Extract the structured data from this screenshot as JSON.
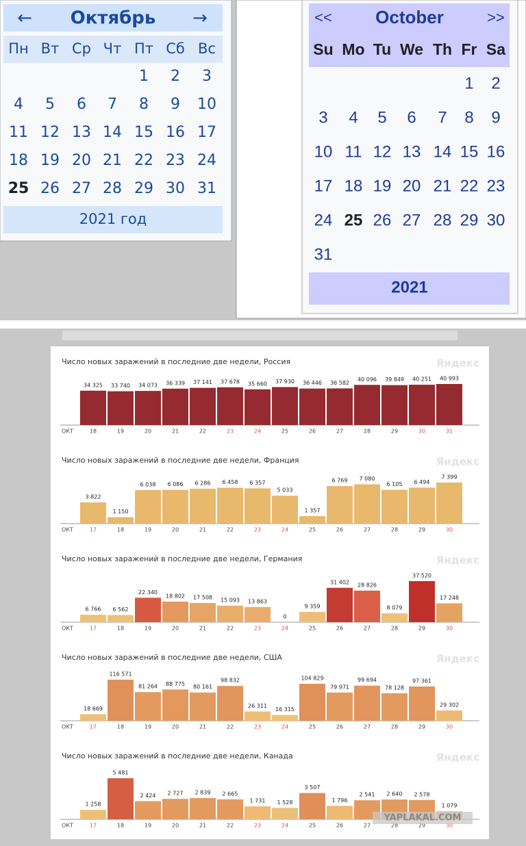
{
  "calendar_ru": {
    "prev": "←",
    "month": "Октябрь",
    "next": "→",
    "weekdays": [
      "Пн",
      "Вт",
      "Ср",
      "Чт",
      "Пт",
      "Сб",
      "Вс"
    ],
    "weeks": [
      [
        null,
        null,
        null,
        null,
        "1",
        "2",
        "3"
      ],
      [
        "4",
        "5",
        "6",
        "7",
        "8",
        "9",
        "10"
      ],
      [
        "11",
        "12",
        "13",
        "14",
        "15",
        "16",
        "17"
      ],
      [
        "18",
        "19",
        "20",
        "21",
        "22",
        "23",
        "24"
      ],
      [
        "25",
        "26",
        "27",
        "28",
        "29",
        "30",
        "31"
      ]
    ],
    "today": "25",
    "footer": "2021 год"
  },
  "calendar_en": {
    "prev": "<<",
    "month": "October",
    "next": ">>",
    "weekdays": [
      "Su",
      "Mo",
      "Tu",
      "We",
      "Th",
      "Fr",
      "Sa"
    ],
    "weeks": [
      [
        null,
        null,
        null,
        null,
        null,
        "1",
        "2"
      ],
      [
        "3",
        "4",
        "5",
        "6",
        "7",
        "8",
        "9"
      ],
      [
        "10",
        "11",
        "12",
        "13",
        "14",
        "15",
        "16"
      ],
      [
        "17",
        "18",
        "19",
        "20",
        "21",
        "22",
        "23"
      ],
      [
        "24",
        "25",
        "26",
        "27",
        "28",
        "29",
        "30"
      ],
      [
        "31",
        null,
        null,
        null,
        null,
        null,
        null
      ]
    ],
    "today": "25",
    "footer": "2021"
  },
  "watermark": "YAPLAKAL.COM",
  "chart_data": [
    {
      "type": "bar",
      "title": "Число новых заражений в последние две недели, Россия",
      "brand": "Яндекс",
      "x_label": "ОКТ",
      "categories": [
        "18",
        "19",
        "20",
        "21",
        "22",
        "23",
        "24",
        "25",
        "26",
        "27",
        "28",
        "29",
        "30",
        "31"
      ],
      "values": [
        34325,
        33740,
        34073,
        36339,
        37141,
        37678,
        35660,
        37930,
        36446,
        36582,
        40096,
        39849,
        40251,
        40993
      ],
      "value_labels": [
        "34 325",
        "33 740",
        "34 073",
        "36 339",
        "37 141",
        "37 678",
        "35 660",
        "37 930",
        "36 446",
        "36 582",
        "40 096",
        "39 849",
        "40 251",
        "40 993"
      ],
      "colors": [
        "#952a30",
        "#952a30",
        "#952a30",
        "#952a30",
        "#952a30",
        "#952a30",
        "#952a30",
        "#952a30",
        "#952a30",
        "#952a30",
        "#952a30",
        "#952a30",
        "#952a30",
        "#952a30"
      ],
      "category_colors": [
        "#444",
        "#444",
        "#444",
        "#444",
        "#444",
        "#d9534f",
        "#d9534f",
        "#444",
        "#444",
        "#444",
        "#444",
        "#444",
        "#d9534f",
        "#d9534f"
      ]
    },
    {
      "type": "bar",
      "title": "Число новых заражений в последние две недели, Франция",
      "brand": "Яндекс",
      "x_label": "ОКТ",
      "categories": [
        "17",
        "18",
        "19",
        "20",
        "21",
        "22",
        "23",
        "24",
        "25",
        "26",
        "27",
        "28",
        "29",
        "30"
      ],
      "values": [
        3822,
        1150,
        6038,
        6086,
        6286,
        6458,
        6357,
        5033,
        1357,
        6769,
        7080,
        6105,
        6494,
        7399
      ],
      "value_labels": [
        "3 822",
        "1 150",
        "6 038",
        "6 086",
        "6 286",
        "6 458",
        "6 357",
        "5 033",
        "1 357",
        "6 769",
        "7 080",
        "6 105",
        "6 494",
        "7 399"
      ],
      "colors": [
        "#e8b86d",
        "#e8b86d",
        "#e8b86d",
        "#e8b86d",
        "#e8b86d",
        "#e8b86d",
        "#e8b86d",
        "#e8b86d",
        "#e8b86d",
        "#e8b86d",
        "#e8b86d",
        "#e8b86d",
        "#e8b86d",
        "#e8b86d"
      ],
      "category_colors": [
        "#d9534f",
        "#444",
        "#444",
        "#444",
        "#444",
        "#444",
        "#d9534f",
        "#d9534f",
        "#444",
        "#444",
        "#444",
        "#444",
        "#444",
        "#d9534f"
      ]
    },
    {
      "type": "bar",
      "title": "Число новых заражений в последние две недели, Германия",
      "brand": "Яндекс",
      "x_label": "ОКТ",
      "categories": [
        "17",
        "18",
        "19",
        "20",
        "21",
        "22",
        "23",
        "24",
        "25",
        "26",
        "27",
        "28",
        "29",
        "30"
      ],
      "values": [
        6766,
        6562,
        22340,
        18802,
        17508,
        15093,
        13863,
        0,
        9359,
        31402,
        28826,
        8079,
        37520,
        17248
      ],
      "value_labels": [
        "6 766",
        "6 562",
        "22 340",
        "18 802",
        "17 508",
        "15 093",
        "13 863",
        "0",
        "9 359",
        "31 402",
        "28 826",
        "8 079",
        "37 520",
        "17 248"
      ],
      "colors": [
        "#eec077",
        "#eec077",
        "#d65a3f",
        "#e49a5e",
        "#e6a565",
        "#e9ad6a",
        "#e9ad6a",
        "#eec077",
        "#eebe78",
        "#c43b33",
        "#d96047",
        "#eec077",
        "#c0302b",
        "#e4a461"
      ],
      "category_colors": [
        "#d9534f",
        "#444",
        "#444",
        "#444",
        "#444",
        "#444",
        "#d9534f",
        "#d9534f",
        "#444",
        "#444",
        "#444",
        "#444",
        "#444",
        "#d9534f"
      ]
    },
    {
      "type": "bar",
      "title": "Число новых заражений в последние две недели, США",
      "brand": "Яндекс",
      "x_label": "ОКТ",
      "categories": [
        "17",
        "18",
        "19",
        "20",
        "21",
        "22",
        "23",
        "24",
        "25",
        "26",
        "27",
        "28",
        "29",
        "30"
      ],
      "values": [
        18669,
        116571,
        81264,
        88775,
        80161,
        98832,
        26311,
        16315,
        104829,
        79971,
        99694,
        78128,
        97361,
        29302
      ],
      "value_labels": [
        "18 669",
        "116 571",
        "81 264",
        "88 775",
        "80 161",
        "98 832",
        "26 311",
        "16 315",
        "104 829",
        "79 971",
        "99 694",
        "78 128",
        "97 361",
        "29 302"
      ],
      "colors": [
        "#eec077",
        "#e0905a",
        "#e39a5e",
        "#e3985e",
        "#e39a5e",
        "#e2955c",
        "#eebe75",
        "#efc27a",
        "#e0905a",
        "#e39a5e",
        "#e2955c",
        "#e39a5e",
        "#e2955c",
        "#ecbb73"
      ],
      "category_colors": [
        "#d9534f",
        "#444",
        "#444",
        "#444",
        "#444",
        "#444",
        "#d9534f",
        "#d9534f",
        "#444",
        "#444",
        "#444",
        "#444",
        "#444",
        "#d9534f"
      ]
    },
    {
      "type": "bar",
      "title": "Число новых заражений в последние две недели, Канада",
      "brand": "Яндекс",
      "x_label": "ОКТ",
      "categories": [
        "17",
        "18",
        "19",
        "20",
        "21",
        "22",
        "23",
        "24",
        "25",
        "26",
        "27",
        "28",
        "29",
        "30"
      ],
      "values": [
        1258,
        5481,
        2424,
        2727,
        2839,
        2665,
        1731,
        1528,
        3507,
        1796,
        2541,
        2640,
        2578,
        1079
      ],
      "value_labels": [
        "1 258",
        "5 481",
        "2 424",
        "2 727",
        "2 839",
        "2 665",
        "1 731",
        "1 528",
        "3 507",
        "1 796",
        "2 541",
        "2 640",
        "2 578",
        "1 079"
      ],
      "colors": [
        "#eec077",
        "#d55e43",
        "#e49a5e",
        "#e39a5e",
        "#e39a5e",
        "#e39a5e",
        "#eebb74",
        "#eec077",
        "#e08e5a",
        "#edb972",
        "#e49a5e",
        "#e39a5e",
        "#e39a5e",
        "#eec077"
      ],
      "category_colors": [
        "#d9534f",
        "#444",
        "#444",
        "#444",
        "#444",
        "#444",
        "#d9534f",
        "#d9534f",
        "#444",
        "#444",
        "#444",
        "#444",
        "#444",
        "#d9534f"
      ]
    }
  ]
}
